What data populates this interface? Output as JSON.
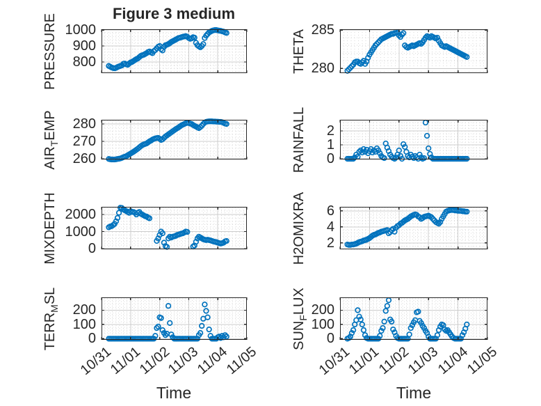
{
  "figure": {
    "title": "Figure 3 medium",
    "marker_color": "#0072BD",
    "axis_color": "#262626",
    "grid_color": "#cccccc",
    "minor_grid_color": "#d9d9d9",
    "background_color": "#ffffff"
  },
  "time_axis": {
    "label": "Time",
    "xlim": [
      0,
      5
    ],
    "tick_values": [
      0,
      1,
      2,
      3,
      4,
      5
    ],
    "tick_labels": [
      "10/31",
      "11/01",
      "11/02",
      "11/03",
      "11/04",
      "11/05"
    ]
  },
  "chart_data": [
    {
      "type": "scatter",
      "name": "PRESSURE",
      "ylabel_pre": "PRESSURE",
      "ylabel_sub": "",
      "ylabel_post": "",
      "yticks": [
        800,
        900,
        1000
      ],
      "ylim": [
        730,
        1005
      ],
      "x0": 0.25,
      "dx": 0.05,
      "values": [
        775,
        770,
        765,
        762,
        760,
        763,
        768,
        772,
        775,
        778,
        788,
        790,
        785,
        782,
        790,
        797,
        800,
        806,
        812,
        818,
        822,
        830,
        838,
        842,
        845,
        850,
        855,
        862,
        866,
        860,
        855,
        868,
        875,
        885,
        895,
        900,
        880,
        872,
        895,
        905,
        908,
        912,
        918,
        925,
        930,
        935,
        940,
        945,
        950,
        952,
        955,
        958,
        960,
        962,
        958,
        950,
        945,
        948,
        955,
        952,
        920,
        905,
        898,
        892,
        900,
        912,
        950,
        965,
        975,
        985,
        990,
        995,
        998,
        1000,
        1000,
        998,
        996,
        995,
        992,
        990,
        985,
        982
      ]
    },
    {
      "type": "scatter",
      "name": "THETA",
      "ylabel_pre": "THETA",
      "ylabel_sub": "",
      "ylabel_post": "",
      "yticks": [
        280,
        285
      ],
      "ylim": [
        279.4,
        285.1
      ],
      "x0": 0.25,
      "dx": 0.05,
      "values": [
        279.7,
        279.9,
        280.1,
        280.3,
        280.5,
        280.8,
        280.9,
        280.9,
        280.7,
        280.6,
        280.8,
        281,
        280.6,
        280.9,
        281.4,
        281.8,
        282.1,
        282.4,
        282.7,
        283,
        283.2,
        283.4,
        283.6,
        283.8,
        283.9,
        284,
        284.1,
        284.2,
        284.3,
        284.4,
        284.5,
        284.5,
        284.6,
        284.6,
        284.7,
        284.3,
        284.1,
        284.4,
        284.6,
        283,
        282.8,
        282.7,
        282.8,
        282.9,
        283,
        282.9,
        283,
        283.1,
        283.2,
        283.3,
        283.2,
        283.4,
        283.7,
        284,
        284.2,
        284.1,
        284,
        284.2,
        284.1,
        284,
        283.9,
        284,
        283.6,
        283.3,
        283,
        282.9,
        282.8,
        282.9,
        282.8,
        282.7,
        282.6,
        282.5,
        282.4,
        282.3,
        282.2,
        282.1,
        282,
        281.9,
        281.8,
        281.7,
        281.6,
        281.5
      ]
    },
    {
      "type": "scatter",
      "name": "AIR_TEMP",
      "ylabel_pre": "AIR",
      "ylabel_sub": "T",
      "ylabel_post": "EMP",
      "yticks": [
        260,
        270,
        280
      ],
      "ylim": [
        259.6,
        282.4
      ],
      "x0": 0.25,
      "dx": 0.05,
      "values": [
        259.9,
        259.7,
        259.6,
        259.6,
        259.6,
        259.7,
        259.9,
        260,
        260.2,
        260.5,
        260.9,
        261.2,
        261.5,
        262,
        262.5,
        263,
        263.5,
        264,
        264.6,
        265.2,
        265.8,
        266.5,
        267.2,
        267.8,
        268.2,
        268.5,
        268.8,
        269.4,
        270,
        270.4,
        271,
        271.4,
        271.7,
        271.9,
        272,
        271.5,
        270.8,
        271.2,
        272,
        272.8,
        273.4,
        274,
        274.6,
        275.2,
        275.8,
        276.4,
        277,
        277.5,
        278,
        278.6,
        279.2,
        279.6,
        280,
        280.4,
        280.6,
        280.5,
        280.2,
        280,
        279.4,
        278.9,
        278.5,
        278,
        277.6,
        278.2,
        279,
        280,
        280.8,
        281.2,
        281.4,
        281.5,
        281.5,
        281.5,
        281.4,
        281.4,
        281.3,
        281.3,
        281.2,
        281.2,
        281,
        280.6,
        280.2,
        280
      ]
    },
    {
      "type": "scatter",
      "name": "RAINFALL",
      "ylabel_pre": "RAINFALL",
      "ylabel_sub": "",
      "ylabel_post": "",
      "yticks": [
        0,
        1,
        2
      ],
      "ylim": [
        -0.05,
        2.8
      ],
      "x0": 0.25,
      "dx": 0.05,
      "values": [
        0,
        0,
        0,
        0,
        0,
        0.1,
        0.3,
        0.15,
        0.5,
        0.6,
        0.45,
        0.7,
        0.5,
        0.65,
        0.4,
        0.55,
        0.7,
        0.45,
        0.6,
        0.5,
        0.75,
        0.6,
        0.4,
        0.2,
        0.1,
        0.05,
        1.1,
        0.8,
        0.55,
        0.3,
        0.15,
        0.05,
        0,
        0.1,
        0.3,
        0.6,
        0.2,
        0,
        1.05,
        0.85,
        0.5,
        0.2,
        0.1,
        0.3,
        0.15,
        0.05,
        0.2,
        0.1,
        0,
        0.3,
        0.1,
        0,
        0.05,
        2.6,
        1.65,
        0.75,
        0.35,
        0.1,
        0,
        0,
        0,
        0,
        0,
        0,
        0,
        0,
        0,
        0,
        0,
        0,
        0,
        0,
        0,
        0,
        0,
        0,
        0,
        0,
        0,
        0,
        0,
        0
      ]
    },
    {
      "type": "scatter",
      "name": "MIXDEPTH",
      "ylabel_pre": "MIXDEPTH",
      "ylabel_sub": "",
      "ylabel_post": "",
      "yticks": [
        0,
        1000,
        2000
      ],
      "ylim": [
        -40,
        2450
      ],
      "x0": 0.25,
      "dx": 0.05,
      "values": [
        1250,
        1300,
        1320,
        1380,
        1450,
        1600,
        1800,
        2100,
        2400,
        2380,
        2300,
        2250,
        2200,
        2150,
        2100,
        2200,
        2150,
        2150,
        2100,
        2000,
        2100,
        2150,
        2050,
        2000,
        1950,
        1900,
        1880,
        1820,
        1780,
        null,
        null,
        null,
        null,
        450,
        600,
        800,
        1000,
        900,
        350,
        150,
        100,
        600,
        700,
        650,
        700,
        720,
        750,
        800,
        820,
        850,
        880,
        900,
        950,
        1000,
        980,
        null,
        null,
        null,
        120,
        180,
        400,
        600,
        700,
        650,
        600,
        550,
        520,
        500,
        520,
        500,
        480,
        450,
        420,
        400,
        380,
        350,
        320,
        300,
        320,
        350,
        420,
        450
      ]
    },
    {
      "type": "scatter",
      "name": "H2OMIXRA",
      "ylabel_pre": "H2OMIXRA",
      "ylabel_sub": "",
      "ylabel_post": "",
      "yticks": [
        2,
        4,
        6
      ],
      "ylim": [
        1.2,
        6.5
      ],
      "x0": 0.25,
      "dx": 0.05,
      "values": [
        1.8,
        1.75,
        1.75,
        1.8,
        1.8,
        1.85,
        1.9,
        2,
        2.1,
        2.15,
        2.2,
        2.3,
        2.35,
        2.4,
        2.5,
        2.6,
        2.75,
        2.9,
        3,
        3.05,
        3.15,
        3.25,
        3.3,
        3.4,
        3.45,
        3.5,
        3.55,
        3.6,
        3.2,
        3.35,
        3.6,
        3.75,
        3.4,
        3.9,
        4.1,
        4.2,
        4.4,
        4.5,
        4.65,
        4.8,
        4.9,
        5,
        5.15,
        5.3,
        5.4,
        5.5,
        5.55,
        5.5,
        5.3,
        5.2,
        5,
        5.1,
        5.25,
        5.3,
        5.35,
        5.4,
        5.3,
        5.2,
        5,
        4.8,
        4.6,
        4.5,
        4.4,
        4.6,
        5,
        5.3,
        5.6,
        5.9,
        6,
        6.05,
        6.1,
        6.1,
        6.1,
        6.05,
        6.05,
        6,
        6,
        6,
        5.95,
        5.95,
        5.9,
        5.9
      ]
    },
    {
      "type": "scatter",
      "name": "TERR_MSL",
      "ylabel_pre": "TERR",
      "ylabel_sub": "M",
      "ylabel_post": "SL",
      "yticks": [
        0,
        100,
        200
      ],
      "ylim": [
        -8,
        290
      ],
      "x0": 0.25,
      "dx": 0.05,
      "values": [
        0,
        0,
        0,
        0,
        0,
        0,
        0,
        0,
        0,
        0,
        0,
        0,
        0,
        0,
        0,
        0,
        0,
        0,
        0,
        0,
        0,
        0,
        0,
        0,
        0,
        0,
        0,
        0,
        0,
        0,
        0,
        0,
        20,
        75,
        85,
        150,
        145,
        60,
        40,
        25,
        35,
        230,
        110,
        30,
        10,
        0,
        0,
        0,
        0,
        0,
        0,
        0,
        0,
        0,
        0,
        0,
        0,
        0,
        0,
        0,
        0,
        0,
        25,
        40,
        90,
        140,
        240,
        195,
        150,
        65,
        20,
        0,
        0,
        0,
        0,
        10,
        15,
        5,
        20,
        10,
        25,
        15
      ]
    },
    {
      "type": "scatter",
      "name": "SUN_FLUX",
      "ylabel_pre": "SUN",
      "ylabel_sub": "F",
      "ylabel_post": "LUX",
      "yticks": [
        0,
        100,
        200
      ],
      "ylim": [
        -8,
        290
      ],
      "x0": 0.25,
      "dx": 0.05,
      "values": [
        0,
        5,
        15,
        40,
        60,
        100,
        130,
        200,
        155,
        135,
        100,
        60,
        25,
        5,
        0,
        0,
        0,
        0,
        0,
        0,
        0,
        0,
        20,
        55,
        75,
        120,
        195,
        230,
        270,
        135,
        120,
        65,
        45,
        20,
        5,
        0,
        0,
        0,
        0,
        0,
        0,
        0,
        30,
        75,
        95,
        115,
        130,
        185,
        190,
        125,
        110,
        90,
        75,
        55,
        40,
        15,
        0,
        0,
        0,
        0,
        0,
        25,
        60,
        85,
        100,
        95,
        65,
        55,
        60,
        45,
        30,
        15,
        5,
        0,
        0,
        0,
        0,
        0,
        25,
        45,
        70,
        100
      ]
    }
  ]
}
